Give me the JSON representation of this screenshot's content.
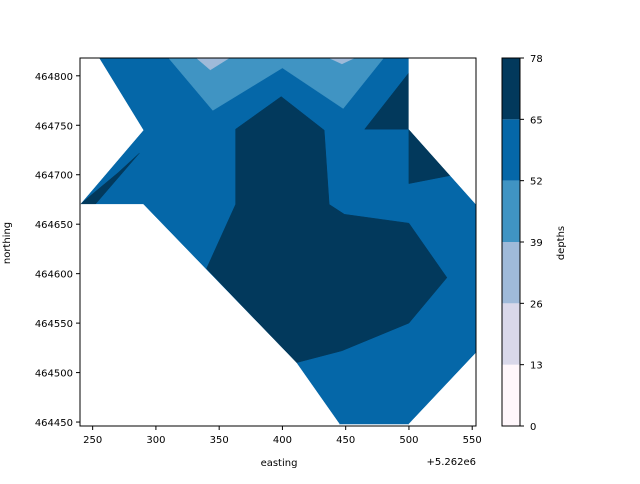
{
  "chart_data": {
    "type": "contour",
    "xlabel": "easting",
    "ylabel": "northing",
    "x_offset_label": "+5.262e6",
    "xlim": [
      240,
      553
    ],
    "ylim": [
      464446,
      464818
    ],
    "x_ticks": [
      250,
      300,
      350,
      400,
      450,
      500,
      550
    ],
    "y_ticks": [
      464450,
      464500,
      464550,
      464600,
      464650,
      464700,
      464750,
      464800
    ],
    "colorbar": {
      "label": "depths",
      "levels": [
        0,
        13,
        26,
        39,
        52,
        65,
        78
      ],
      "colors": [
        "#fff7fb",
        "#d9d8ea",
        "#9fbad9",
        "#4094c3",
        "#0567a8",
        "#02395c"
      ]
    },
    "regions": [
      {
        "level_band": "52-65",
        "color": "#0567a8",
        "points": [
          [
            240,
            464818
          ],
          [
            553,
            464818
          ],
          [
            553,
            464520
          ],
          [
            545,
            464505
          ],
          [
            500,
            464448
          ],
          [
            445,
            464448
          ],
          [
            411,
            464487
          ],
          [
            290,
            464670
          ],
          [
            240,
            464670
          ]
        ]
      },
      {
        "level_band": "39-52",
        "color": "#4094c3",
        "points": [
          [
            310,
            464818
          ],
          [
            525,
            464818
          ],
          [
            480,
            464818
          ],
          [
            448,
            464767
          ],
          [
            400,
            464808
          ],
          [
            345,
            464765
          ]
        ]
      },
      {
        "level_band": "26-39",
        "color": "#9fbad9",
        "points": [
          [
            332,
            464818
          ],
          [
            358,
            464818
          ],
          [
            343,
            464806
          ]
        ]
      },
      {
        "level_band": "26-39",
        "color": "#9fbad9",
        "points": [
          [
            437,
            464818
          ],
          [
            457,
            464818
          ],
          [
            447,
            464812
          ]
        ]
      },
      {
        "level_band": "65-78",
        "color": "#02395c",
        "points": [
          [
            340,
            464605
          ],
          [
            363,
            464670
          ],
          [
            363,
            464746
          ],
          [
            399,
            464779
          ],
          [
            433,
            464745
          ],
          [
            437,
            464670
          ],
          [
            449,
            464660
          ],
          [
            500,
            464651
          ],
          [
            530,
            464596
          ],
          [
            500,
            464550
          ],
          [
            447,
            464522
          ],
          [
            411,
            464510
          ]
        ]
      },
      {
        "level_band": "65-78",
        "color": "#02395c",
        "points": [
          [
            465,
            464746
          ],
          [
            500,
            464803
          ],
          [
            500,
            464691
          ],
          [
            536,
            464700
          ],
          [
            500,
            464746
          ]
        ]
      },
      {
        "level_band": "65-78",
        "color": "#02395c",
        "points": [
          [
            240,
            464818
          ],
          [
            255,
            464818
          ],
          [
            280,
            464762
          ],
          [
            262,
            464775
          ]
        ]
      },
      {
        "level_band": "65-78",
        "color": "#02395c",
        "points": [
          [
            240,
            464670
          ],
          [
            252,
            464670
          ],
          [
            287,
            464722
          ],
          [
            270,
            464702
          ]
        ]
      }
    ],
    "masks": [
      {
        "color": "#ffffff",
        "points": [
          [
            240,
            464818
          ],
          [
            255,
            464818
          ],
          [
            290,
            464745
          ],
          [
            240,
            464670
          ]
        ]
      },
      {
        "color": "#ffffff",
        "points": [
          [
            240,
            464670
          ],
          [
            290,
            464670
          ],
          [
            411,
            464510
          ],
          [
            445,
            464448
          ],
          [
            240,
            464448
          ]
        ]
      },
      {
        "color": "#ffffff",
        "points": [
          [
            500,
            464818
          ],
          [
            553,
            464818
          ],
          [
            553,
            464670
          ],
          [
            500,
            464746
          ]
        ]
      },
      {
        "color": "#ffffff",
        "points": [
          [
            500,
            464448
          ],
          [
            553,
            464448
          ],
          [
            553,
            464520
          ]
        ]
      }
    ]
  }
}
